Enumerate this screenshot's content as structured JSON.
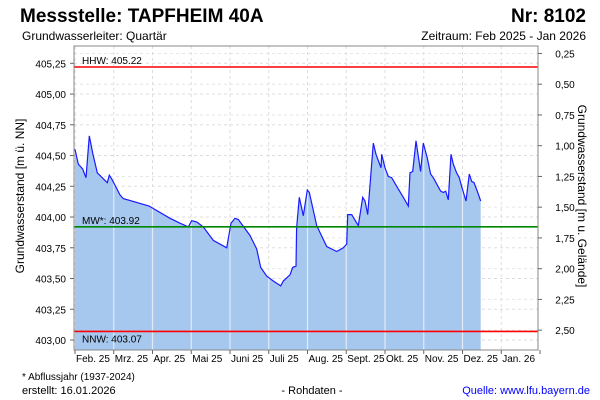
{
  "header": {
    "title": "Messstelle: TAPFHEIM 40A",
    "number": "Nr: 8102",
    "aquifer": "Grundwasserleiter: Quartär",
    "period": "Zeitraum: Feb 2025 - Jan 2026"
  },
  "footer": {
    "note": "* Abflussjahr (1937-2024)",
    "created": "erstellt:  16.01.2026",
    "rawdata": "- Rohdaten -",
    "source": "Quelle: www.lfu.bayern.de"
  },
  "colors": {
    "fill": "#a6c8ef",
    "line": "#1a1aff",
    "hhw": "#ff0000",
    "nnw": "#ff0000",
    "mw": "#008800",
    "source": "#0000ff"
  },
  "chart_data": {
    "type": "area",
    "ylabel": "Grundwasserstand [m ü. NN]",
    "ylabel_right": "Grundwasserstand [m u. Gelände]",
    "ylim": [
      402.96,
      405.41
    ],
    "yticks": [
      "405,25",
      "405,00",
      "404,75",
      "404,50",
      "404,25",
      "404,00",
      "403,75",
      "403,50",
      "403,25",
      "403,00"
    ],
    "ytick_values": [
      405.25,
      405.0,
      404.75,
      404.5,
      404.25,
      404.0,
      403.75,
      403.5,
      403.25,
      403.0
    ],
    "ground_level": 405.58,
    "yticks_right": [
      "0,25",
      "0,50",
      "0,75",
      "1,00",
      "1,25",
      "1,50",
      "1,75",
      "2,00",
      "2,25",
      "2,50"
    ],
    "ytick_right_values": [
      0.25,
      0.5,
      0.75,
      1.0,
      1.25,
      1.5,
      1.75,
      2.0,
      2.25,
      2.5
    ],
    "x_unit": "months since 1 Feb 2025",
    "xlim": [
      0,
      12
    ],
    "xticks": [
      "Feb. 25",
      "Mrz. 25",
      "Apr. 25",
      "Mai 25",
      "Juni 25",
      "Juli 25",
      "Aug. 25",
      "Sept. 25",
      "Okt. 25",
      "Nov. 25",
      "Dez. 25",
      "Jan. 26"
    ],
    "reference_lines": [
      {
        "label": "HHW: 405.22",
        "value": 405.22,
        "key": "hhw"
      },
      {
        "label": "MW*: 403.92",
        "value": 403.92,
        "key": "mw"
      },
      {
        "label": "NNW: 403.07",
        "value": 403.07,
        "key": "nnw"
      }
    ],
    "series": [
      {
        "name": "Grundwasserstand",
        "points": [
          [
            0.0,
            404.55
          ],
          [
            0.086,
            404.43
          ],
          [
            0.198,
            404.39
          ],
          [
            0.284,
            404.32
          ],
          [
            0.37,
            404.66
          ],
          [
            0.456,
            404.52
          ],
          [
            0.576,
            404.36
          ],
          [
            0.8,
            404.29
          ],
          [
            0.834,
            404.28
          ],
          [
            0.886,
            404.34
          ],
          [
            0.946,
            404.31
          ],
          [
            1.161,
            404.18
          ],
          [
            1.247,
            404.15
          ],
          [
            1.91,
            404.09
          ],
          [
            2.452,
            403.99
          ],
          [
            2.71,
            403.95
          ],
          [
            2.925,
            403.92
          ],
          [
            3.011,
            403.97
          ],
          [
            3.14,
            403.96
          ],
          [
            3.312,
            403.92
          ],
          [
            3.57,
            403.81
          ],
          [
            3.914,
            403.75
          ],
          [
            4.026,
            403.95
          ],
          [
            4.129,
            403.99
          ],
          [
            4.215,
            403.98
          ],
          [
            4.516,
            403.85
          ],
          [
            4.688,
            403.74
          ],
          [
            4.792,
            403.59
          ],
          [
            4.946,
            403.52
          ],
          [
            5.118,
            403.48
          ],
          [
            5.308,
            403.44
          ],
          [
            5.376,
            403.48
          ],
          [
            5.548,
            403.53
          ],
          [
            5.617,
            403.59
          ],
          [
            5.703,
            403.6
          ],
          [
            5.72,
            403.91
          ],
          [
            5.789,
            404.16
          ],
          [
            5.892,
            404.01
          ],
          [
            5.996,
            404.22
          ],
          [
            6.047,
            404.2
          ],
          [
            6.237,
            403.93
          ],
          [
            6.495,
            403.76
          ],
          [
            6.753,
            403.72
          ],
          [
            6.925,
            403.75
          ],
          [
            7.011,
            403.78
          ],
          [
            7.037,
            404.02
          ],
          [
            7.14,
            404.02
          ],
          [
            7.312,
            403.93
          ],
          [
            7.424,
            404.16
          ],
          [
            7.484,
            404.13
          ],
          [
            7.553,
            404.02
          ],
          [
            7.699,
            404.6
          ],
          [
            7.768,
            404.51
          ],
          [
            7.897,
            404.4
          ],
          [
            7.914,
            404.51
          ],
          [
            8.0,
            404.4
          ],
          [
            8.086,
            404.33
          ],
          [
            8.172,
            404.32
          ],
          [
            8.301,
            404.25
          ],
          [
            8.473,
            404.16
          ],
          [
            8.602,
            404.09
          ],
          [
            8.645,
            404.36
          ],
          [
            8.714,
            404.37
          ],
          [
            8.8,
            404.62
          ],
          [
            8.92,
            404.37
          ],
          [
            8.989,
            404.6
          ],
          [
            9.092,
            404.48
          ],
          [
            9.178,
            404.35
          ],
          [
            9.247,
            404.32
          ],
          [
            9.437,
            404.21
          ],
          [
            9.505,
            404.2
          ],
          [
            9.566,
            404.21
          ],
          [
            9.634,
            404.14
          ],
          [
            9.703,
            404.51
          ],
          [
            9.763,
            404.43
          ],
          [
            9.849,
            404.36
          ],
          [
            9.918,
            404.32
          ],
          [
            9.978,
            404.25
          ],
          [
            10.09,
            404.13
          ],
          [
            10.176,
            404.35
          ],
          [
            10.237,
            404.29
          ],
          [
            10.297,
            404.28
          ],
          [
            10.383,
            404.21
          ],
          [
            10.469,
            404.13
          ]
        ]
      }
    ]
  }
}
